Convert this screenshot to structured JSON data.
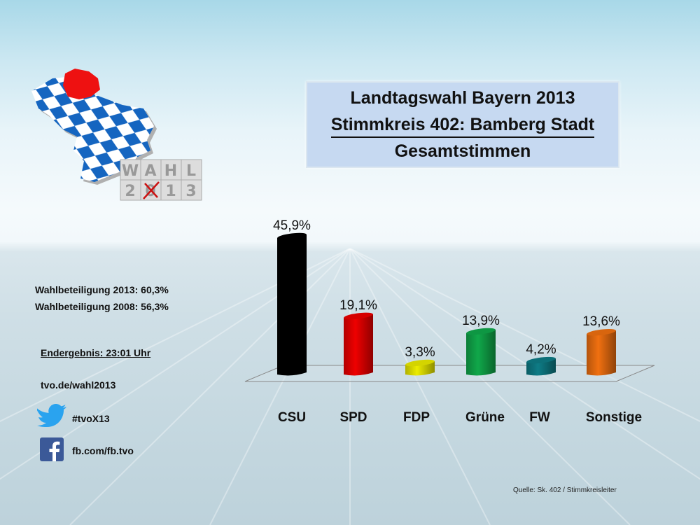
{
  "title": {
    "line1": "Landtagswahl Bayern 2013",
    "line2": "Stimmkreis 402: Bamberg Stadt",
    "line3": "Gesamtstimmen"
  },
  "logo": {
    "icon": "bavaria-map-icon",
    "tiles_row1": [
      "W",
      "A",
      "H",
      "L"
    ],
    "tiles_row2": [
      "2",
      "0",
      "1",
      "3"
    ]
  },
  "info": {
    "turnout_2013": "Wahlbeteiligung 2013: 60,3%",
    "turnout_2008": "Wahlbeteiligung 2008: 56,3%",
    "final_result": "Endergebnis: 23:01 Uhr",
    "website": "tvo.de/wahl2013",
    "twitter": "#tvoX13",
    "facebook": "fb.com/fb.tvo"
  },
  "source": "Quelle: Sk. 402 / Stimmkreisleiter",
  "chart_data": {
    "type": "bar",
    "title": "Landtagswahl Bayern 2013 – Stimmkreis 402: Bamberg Stadt – Gesamtstimmen",
    "categories": [
      "CSU",
      "SPD",
      "FDP",
      "Grüne",
      "FW",
      "Sonstige"
    ],
    "values": [
      45.9,
      19.1,
      3.3,
      13.9,
      4.2,
      13.6
    ],
    "labels": [
      "45,9%",
      "19,1%",
      "3,3%",
      "13,9%",
      "4,2%",
      "13,6%"
    ],
    "colors": [
      "#000000",
      "#ee0000",
      "#ecec00",
      "#10a84a",
      "#0e7c86",
      "#f07010"
    ],
    "xlabel": "",
    "ylabel": "",
    "ylim": [
      0,
      50
    ],
    "grid": false,
    "legend": "none"
  }
}
